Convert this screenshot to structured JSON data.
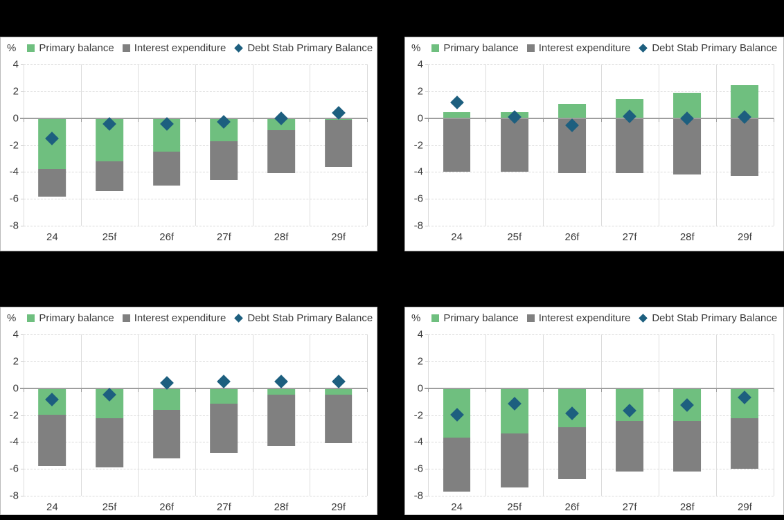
{
  "page": {
    "background": "#000000"
  },
  "colors": {
    "primary_balance": "#6FBF7F",
    "interest_expenditure": "#808080",
    "debt_stab_primary_balance": "#1D5F7F",
    "zero_line": "#9E9E9E",
    "gridline": "#D9D9D9",
    "text": "#3A3A3A",
    "panel_background": "#FFFFFF"
  },
  "chart_data": [
    {
      "type": "bar",
      "subtype": "stacked-bars-with-diamond-markers",
      "position": "top-left",
      "ylabel": "%",
      "ylim": [
        -8,
        4
      ],
      "y_ticks": [
        4,
        2,
        0,
        -2,
        -4,
        -6,
        -8
      ],
      "grid": true,
      "legend_position": "top",
      "categories": [
        "24",
        "25f",
        "26f",
        "27f",
        "28f",
        "29f"
      ],
      "series": [
        {
          "name": "Primary balance",
          "type": "bar",
          "marker": "square",
          "color": "#6FBF7F",
          "values": [
            -3.8,
            -3.2,
            -2.5,
            -1.7,
            -0.9,
            -0.1
          ]
        },
        {
          "name": "Interest expenditure",
          "type": "bar",
          "marker": "square",
          "color": "#808080",
          "values": [
            -2.05,
            -2.25,
            -2.5,
            -2.9,
            -3.2,
            -3.5
          ]
        },
        {
          "name": "Debt Stab Primary Balance",
          "type": "scatter",
          "marker": "diamond",
          "color": "#1D5F7F",
          "values": [
            -1.5,
            -0.45,
            -0.45,
            -0.25,
            0.0,
            0.4
          ]
        }
      ]
    },
    {
      "type": "bar",
      "subtype": "stacked-bars-with-diamond-markers",
      "position": "top-right",
      "ylabel": "%",
      "ylim": [
        -8,
        4
      ],
      "y_ticks": [
        4,
        2,
        0,
        -2,
        -4,
        -6,
        -8
      ],
      "grid": true,
      "legend_position": "top",
      "categories": [
        "24",
        "25f",
        "26f",
        "27f",
        "28f",
        "29f"
      ],
      "series": [
        {
          "name": "Primary balance",
          "type": "bar",
          "marker": "square",
          "color": "#6FBF7F",
          "values": [
            0.45,
            0.45,
            1.05,
            1.45,
            1.9,
            2.45
          ]
        },
        {
          "name": "Interest expenditure",
          "type": "bar",
          "marker": "square",
          "color": "#808080",
          "values": [
            -4.0,
            -4.0,
            -4.1,
            -4.1,
            -4.2,
            -4.3
          ]
        },
        {
          "name": "Debt Stab Primary Balance",
          "type": "scatter",
          "marker": "diamond",
          "color": "#1D5F7F",
          "values": [
            1.15,
            0.1,
            -0.55,
            0.15,
            0.0,
            0.1
          ]
        }
      ]
    },
    {
      "type": "bar",
      "subtype": "stacked-bars-with-diamond-markers",
      "position": "bottom-left",
      "ylabel": "%",
      "ylim": [
        -8,
        4
      ],
      "y_ticks": [
        4,
        2,
        0,
        -2,
        -4,
        -6,
        -8
      ],
      "grid": true,
      "legend_position": "top",
      "categories": [
        "24",
        "25f",
        "26f",
        "27f",
        "28f",
        "29f"
      ],
      "series": [
        {
          "name": "Primary balance",
          "type": "bar",
          "marker": "square",
          "color": "#6FBF7F",
          "values": [
            -1.95,
            -2.25,
            -1.6,
            -1.15,
            -0.5,
            -0.5
          ]
        },
        {
          "name": "Interest expenditure",
          "type": "bar",
          "marker": "square",
          "color": "#808080",
          "values": [
            -3.85,
            -3.65,
            -3.6,
            -3.65,
            -3.8,
            -3.6
          ]
        },
        {
          "name": "Debt Stab Primary Balance",
          "type": "scatter",
          "marker": "diamond",
          "color": "#1D5F7F",
          "values": [
            -0.85,
            -0.5,
            0.4,
            0.5,
            0.5,
            0.5
          ]
        }
      ]
    },
    {
      "type": "bar",
      "subtype": "stacked-bars-with-diamond-markers",
      "position": "bottom-right",
      "ylabel": "%",
      "ylim": [
        -8,
        4
      ],
      "y_ticks": [
        4,
        2,
        0,
        -2,
        -4,
        -6,
        -8
      ],
      "grid": true,
      "legend_position": "top",
      "categories": [
        "24",
        "25f",
        "26f",
        "27f",
        "28f",
        "29f"
      ],
      "series": [
        {
          "name": "Primary balance",
          "type": "bar",
          "marker": "square",
          "color": "#6FBF7F",
          "values": [
            -3.65,
            -3.35,
            -2.9,
            -2.45,
            -2.45,
            -2.25
          ]
        },
        {
          "name": "Interest expenditure",
          "type": "bar",
          "marker": "square",
          "color": "#808080",
          "values": [
            -4.05,
            -4.05,
            -3.85,
            -3.75,
            -3.75,
            -3.75
          ]
        },
        {
          "name": "Debt Stab Primary Balance",
          "type": "scatter",
          "marker": "diamond",
          "color": "#1D5F7F",
          "values": [
            -1.95,
            -1.15,
            -1.85,
            -1.65,
            -1.25,
            -0.7
          ]
        }
      ]
    }
  ]
}
